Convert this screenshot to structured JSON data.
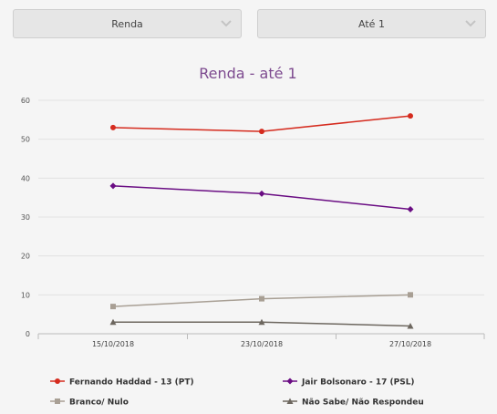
{
  "filters": {
    "dimension": {
      "value": "Renda",
      "icon": "chevron-down-icon"
    },
    "range": {
      "value": "Até 1",
      "icon": "chevron-down-icon"
    }
  },
  "chart_data": {
    "type": "line",
    "title": "Renda - até 1",
    "categories": [
      "15/10/2018",
      "23/10/2018",
      "27/10/2018"
    ],
    "ylim": [
      0,
      60
    ],
    "yticks": [
      0,
      10,
      20,
      30,
      40,
      50,
      60
    ],
    "grid": true,
    "legend_position": "bottom",
    "series": [
      {
        "name": "Fernando Haddad - 13 (PT)",
        "values": [
          53,
          52,
          56
        ],
        "color": "#d52b1e",
        "marker": "circle"
      },
      {
        "name": "Jair Bolsonaro - 17 (PSL)",
        "values": [
          38,
          36,
          32
        ],
        "color": "#6a0d83",
        "marker": "diamond"
      },
      {
        "name": "Branco/ Nulo",
        "values": [
          7,
          9,
          10
        ],
        "color": "#a89f94",
        "marker": "square"
      },
      {
        "name": "Não Sabe/ Não Respondeu",
        "values": [
          3,
          3,
          2
        ],
        "color": "#6d675f",
        "marker": "triangle"
      }
    ],
    "title_color": "#7d4a8f"
  }
}
